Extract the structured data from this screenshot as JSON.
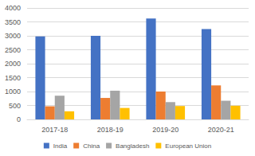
{
  "chart_data": {
    "type": "bar",
    "categories": [
      "2017-18",
      "2018-19",
      "2019-20",
      "2020-21"
    ],
    "series": [
      {
        "name": "India",
        "color": "#4472c4",
        "values": [
          2980,
          3000,
          3620,
          3240
        ]
      },
      {
        "name": "China",
        "color": "#ed7d31",
        "values": [
          470,
          770,
          1000,
          1220
        ]
      },
      {
        "name": "Bangladesh",
        "color": "#a5a5a5",
        "values": [
          850,
          1030,
          620,
          670
        ]
      },
      {
        "name": "European Union",
        "color": "#ffc000",
        "values": [
          290,
          410,
          480,
          490
        ]
      }
    ],
    "ylim": [
      0,
      4000
    ],
    "yticks": [
      0,
      500,
      1000,
      1500,
      2000,
      2500,
      3000,
      3500,
      4000
    ],
    "grid": true,
    "legend": "bottom"
  }
}
